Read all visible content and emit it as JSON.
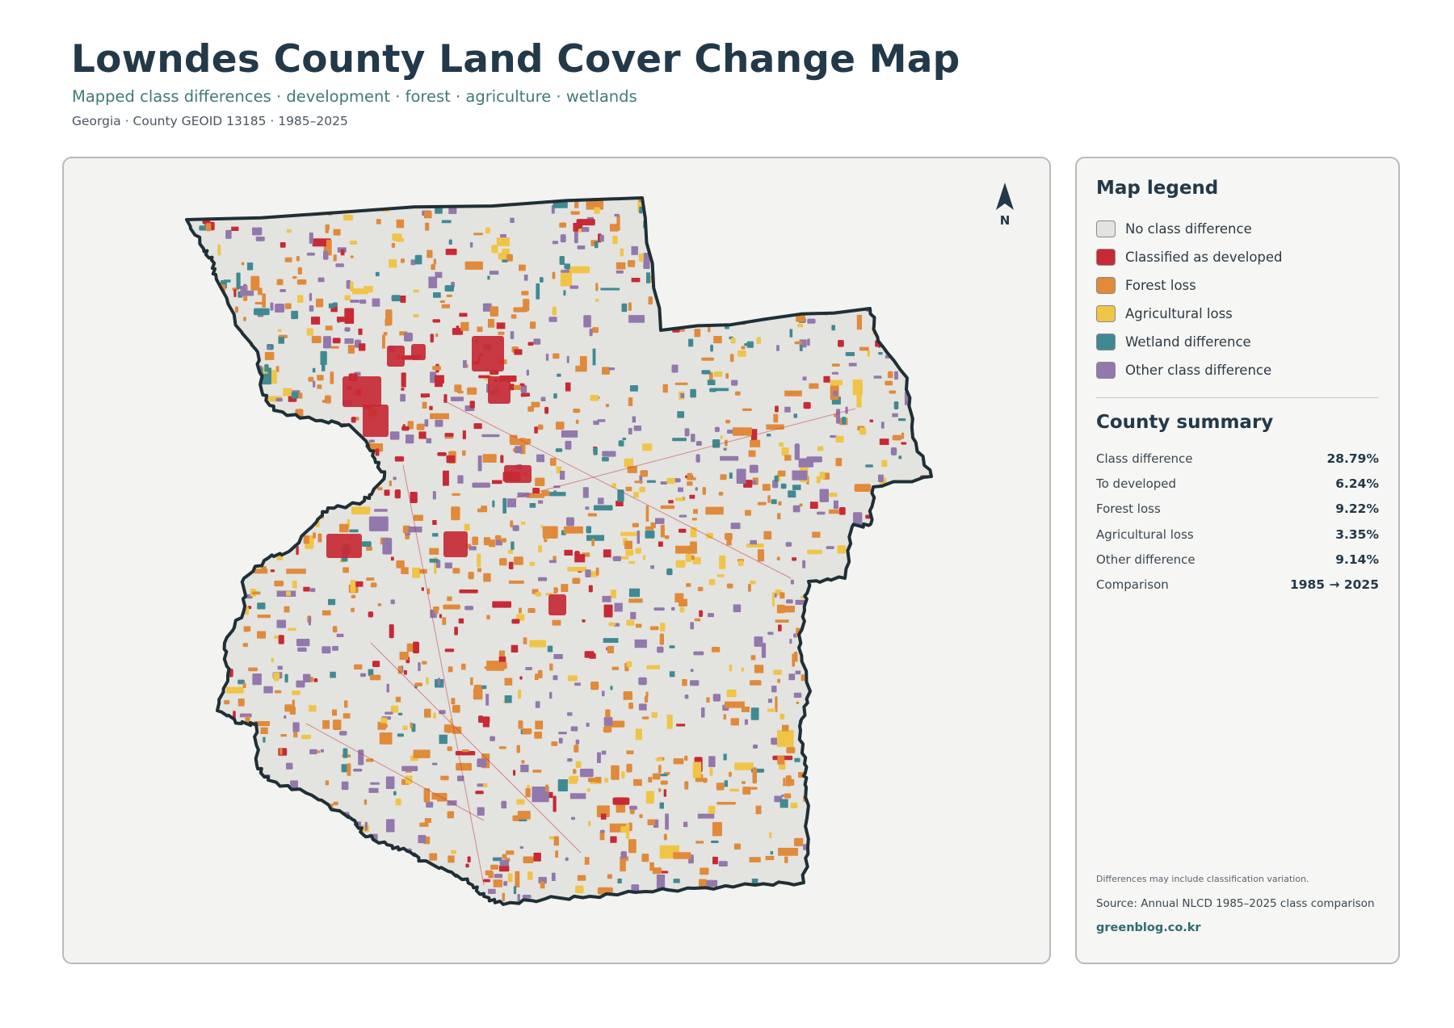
{
  "header": {
    "title": "Lowndes County Land Cover Change Map",
    "subtitle": "Mapped class differences · development · forest · agriculture · wetlands",
    "meta": "Georgia · County GEOID 13185 · 1985–2025"
  },
  "map": {
    "north_label": "N",
    "county_name": "Lowndes County",
    "colors": {
      "no_difference": "#e3e3e0",
      "developed": "#c72a35",
      "forest_loss": "#e08a3a",
      "agricultural_loss": "#f0c446",
      "wetland_difference": "#3f8a92",
      "other_difference": "#9278ac",
      "boundary": "#1f2f36"
    }
  },
  "legend": {
    "title": "Map legend",
    "items": [
      {
        "label": "No class difference",
        "color": "#e3e3e0"
      },
      {
        "label": "Classified as developed",
        "color": "#c72a35"
      },
      {
        "label": "Forest loss",
        "color": "#e08a3a"
      },
      {
        "label": "Agricultural loss",
        "color": "#f0c446"
      },
      {
        "label": "Wetland difference",
        "color": "#3f8a92"
      },
      {
        "label": "Other class difference",
        "color": "#9278ac"
      }
    ]
  },
  "summary": {
    "title": "County summary",
    "rows": [
      {
        "label": "Class difference",
        "value": "28.79%"
      },
      {
        "label": "To developed",
        "value": "6.24%"
      },
      {
        "label": "Forest loss",
        "value": "9.22%"
      },
      {
        "label": "Agricultural loss",
        "value": "3.35%"
      },
      {
        "label": "Other difference",
        "value": "9.14%"
      },
      {
        "label": "Comparison",
        "value": "1985 → 2025"
      }
    ]
  },
  "footer": {
    "note": "Differences may include classification variation.",
    "source": "Source: Annual NLCD 1985–2025 class comparison",
    "brand": "greenblog.co.kr"
  }
}
